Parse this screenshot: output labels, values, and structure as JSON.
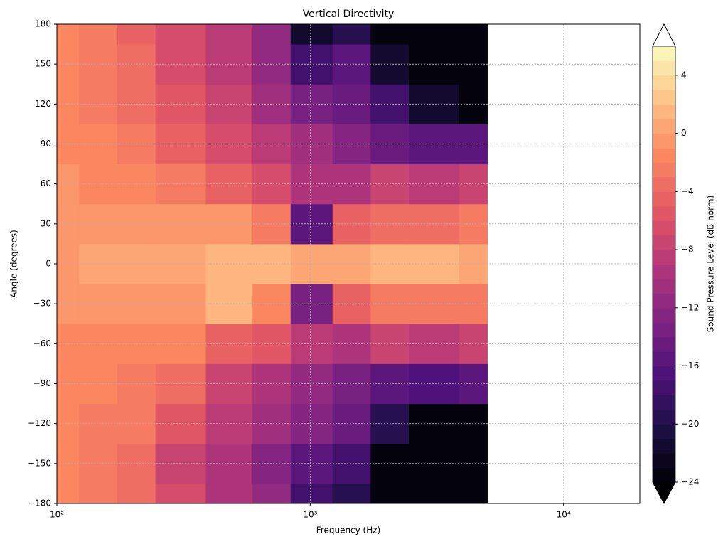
{
  "chart_data": {
    "type": "contour",
    "title": "Vertical Directivity",
    "x_label": "Frequency (Hz)",
    "y_label": "Angle (degrees)",
    "colorbar_label": "Sound Pressure Level (dB norm)",
    "colormap": "magma",
    "xscale": "log",
    "grid": true,
    "xlim": [
      100,
      20000
    ],
    "xticks": [
      {
        "value": 100,
        "label": "10²"
      },
      {
        "value": 1000,
        "label": "10³"
      },
      {
        "value": 10000,
        "label": "10⁴"
      }
    ],
    "ylim": [
      -180,
      180
    ],
    "yticks": [
      {
        "value": -180,
        "label": "−180"
      },
      {
        "value": -150,
        "label": "−150"
      },
      {
        "value": -120,
        "label": "−120"
      },
      {
        "value": -90,
        "label": "−90"
      },
      {
        "value": -60,
        "label": "−60"
      },
      {
        "value": -30,
        "label": "−30"
      },
      0,
      30,
      60,
      90,
      120,
      150,
      180
    ],
    "clim": [
      -24,
      6
    ],
    "level_step": 1,
    "cticks": [
      {
        "value": -24,
        "label": "−24"
      },
      {
        "value": -20,
        "label": "−20"
      },
      {
        "value": -16,
        "label": "−16"
      },
      {
        "value": -12,
        "label": "−12"
      },
      {
        "value": -8,
        "label": "−8"
      },
      {
        "value": -4,
        "label": "−4"
      },
      0,
      4
    ],
    "x": [
      100,
      150,
      200,
      300,
      500,
      700,
      1000,
      1500,
      2000,
      3000,
      5000
    ],
    "y": [
      -180,
      -150,
      -120,
      -90,
      -60,
      -30,
      0,
      30,
      60,
      90,
      120,
      150,
      180
    ],
    "z": [
      [
        -2,
        -3,
        -4,
        -7,
        -10,
        -12,
        -18,
        -20,
        -24,
        -24,
        -24
      ],
      [
        -2,
        -3,
        -4,
        -8,
        -10,
        -13,
        -16,
        -18,
        -24,
        -24,
        -24
      ],
      [
        -2,
        -3,
        -3,
        -6,
        -9,
        -11,
        -13,
        -15,
        -20,
        -24,
        -24
      ],
      [
        -2,
        -2,
        -3,
        -4,
        -8,
        -10,
        -12,
        -14,
        -16,
        -17,
        -16
      ],
      [
        -2,
        -2,
        -2,
        -2,
        -5,
        -6,
        -9,
        -10,
        -8,
        -9,
        -8
      ],
      [
        -1,
        -1,
        -1,
        -1,
        1,
        -2,
        -14,
        -5,
        -3,
        -3,
        -3
      ],
      [
        -1,
        0,
        0,
        0,
        1,
        1,
        0,
        0,
        1,
        1,
        0
      ],
      [
        -1,
        -1,
        -1,
        -1,
        -1,
        -3,
        -16,
        -5,
        -4,
        -4,
        -3
      ],
      [
        -1,
        -2,
        -2,
        -3,
        -5,
        -7,
        -10,
        -10,
        -8,
        -9,
        -8
      ],
      [
        -2,
        -2,
        -3,
        -5,
        -7,
        -9,
        -11,
        -13,
        -15,
        -16,
        -16
      ],
      [
        -2,
        -3,
        -4,
        -6,
        -8,
        -11,
        -14,
        -15,
        -18,
        -22,
        -24
      ],
      [
        -2,
        -3,
        -4,
        -7,
        -9,
        -12,
        -18,
        -16,
        -22,
        -24,
        -24
      ],
      [
        -2,
        -3,
        -5,
        -7,
        -9,
        -12,
        -22,
        -20,
        -24,
        -24,
        -24
      ]
    ]
  }
}
